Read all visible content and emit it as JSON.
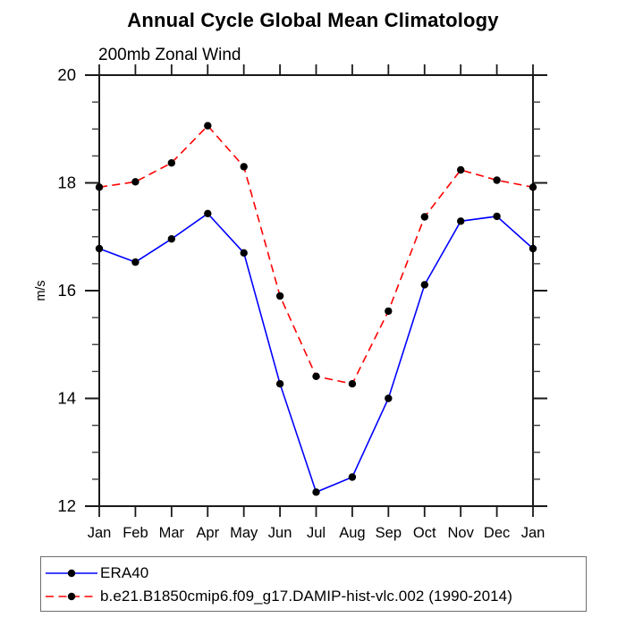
{
  "header": {
    "title": "Annual Cycle Global Mean Climatology",
    "subtitle": "200mb Zonal Wind"
  },
  "axes": {
    "ylabel": "m/s",
    "ytick_labels": [
      "12",
      "14",
      "16",
      "18",
      "20"
    ],
    "xtick_labels": [
      "Jan",
      "Feb",
      "Mar",
      "Apr",
      "May",
      "Jun",
      "Jul",
      "Aug",
      "Sep",
      "Oct",
      "Nov",
      "Dec",
      "Jan"
    ]
  },
  "colors": {
    "era40_line": "#0000ff",
    "model_line": "#ff0000",
    "marker": "#000000",
    "axis": "#1a1a1a",
    "text": "#000000",
    "legend_border": "#6e6e6e",
    "background": "#ffffff"
  },
  "chart_data": {
    "type": "line",
    "title": "Annual Cycle Global Mean Climatology",
    "subtitle": "200mb Zonal Wind",
    "xlabel": "",
    "ylabel": "m/s",
    "categories": [
      "Jan",
      "Feb",
      "Mar",
      "Apr",
      "May",
      "Jun",
      "Jul",
      "Aug",
      "Sep",
      "Oct",
      "Nov",
      "Dec",
      "Jan"
    ],
    "ylim": [
      12,
      20
    ],
    "yticks": [
      12,
      14,
      16,
      18,
      20
    ],
    "y_minor_step": 0.5,
    "grid": false,
    "legend_position": "bottom",
    "marker": "filled-circle",
    "series": [
      {
        "name": "ERA40",
        "color": "#0000ff",
        "line_style": "solid",
        "values": [
          16.78,
          16.53,
          16.96,
          17.43,
          16.7,
          14.27,
          12.26,
          12.54,
          14.0,
          16.11,
          17.29,
          17.38,
          16.78
        ]
      },
      {
        "name": "b.e21.B1850cmip6.f09_g17.DAMIP-hist-vlc.002 (1990-2014)",
        "color": "#ff0000",
        "line_style": "dashed",
        "values": [
          17.92,
          18.02,
          18.37,
          19.06,
          18.3,
          15.9,
          14.41,
          14.27,
          15.62,
          17.37,
          18.24,
          18.05,
          17.92
        ]
      }
    ]
  }
}
